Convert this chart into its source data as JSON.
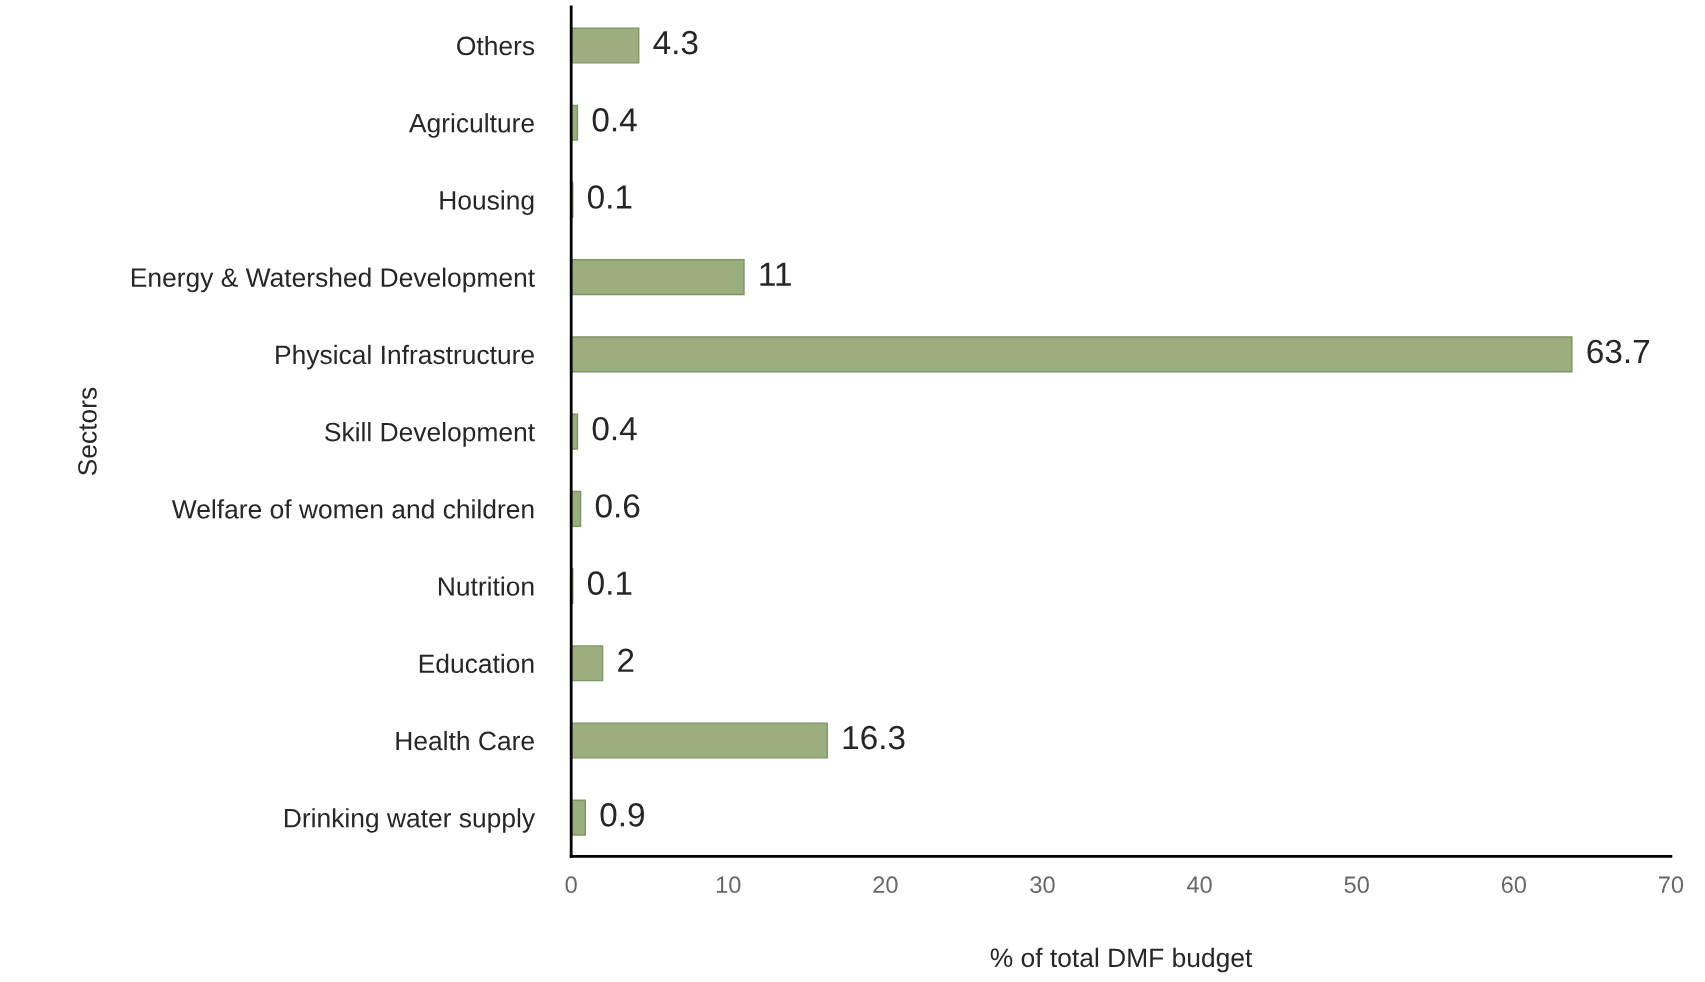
{
  "chart_data": {
    "type": "bar",
    "orientation": "horizontal",
    "xlabel": "% of total DMF budget",
    "ylabel": "Sectors",
    "categories": [
      "Others",
      "Agriculture",
      "Housing",
      "Energy & Watershed Development",
      "Physical Infrastructure",
      "Skill Development",
      "Welfare of women and children",
      "Nutrition",
      "Education",
      "Health Care",
      "Drinking water supply"
    ],
    "values": [
      4.3,
      0.4,
      0.1,
      11,
      63.7,
      0.4,
      0.6,
      0.1,
      2,
      16.3,
      0.9
    ],
    "color": "#9aae80",
    "xlim": [
      0,
      70
    ],
    "xticks": [
      0,
      10,
      20,
      30,
      40,
      50,
      60,
      70
    ],
    "data_labels": true,
    "grid": false,
    "legend": false
  }
}
